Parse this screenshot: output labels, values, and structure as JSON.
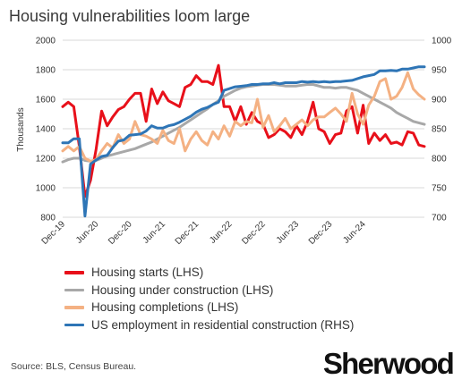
{
  "title": "Housing vulnerabilities loom large",
  "source": "Source: BLS, Census Bureau.",
  "logo": "Sherwood",
  "chart_data": {
    "type": "line",
    "title": "Housing vulnerabilities loom large",
    "ylabel": "Thousands",
    "ylabel_right": "",
    "ylim": [
      800,
      2000
    ],
    "ylim_right": [
      700,
      1000
    ],
    "yticks": [
      "800",
      "1000",
      "1200",
      "1400",
      "1600",
      "1800",
      "2000"
    ],
    "yticks_right": [
      "700",
      "750",
      "800",
      "850",
      "900",
      "950",
      "1000"
    ],
    "x_start": "2019-12",
    "x_end": "2025-01",
    "xticks": [
      "Dec-19",
      "Jun-20",
      "Dec-20",
      "Jun-21",
      "Dec-21",
      "Jun-22",
      "Dec-22",
      "Jun-23",
      "Dec-23",
      "Jun-24"
    ],
    "grid": true,
    "legend_position": "bottom",
    "series": [
      {
        "name": "Housing starts (LHS)",
        "axis": "left",
        "color": "#e8101a",
        "values": [
          1550,
          1580,
          1550,
          1280,
          940,
          1050,
          1260,
          1520,
          1420,
          1480,
          1530,
          1550,
          1600,
          1640,
          1640,
          1450,
          1670,
          1570,
          1650,
          1590,
          1570,
          1550,
          1680,
          1700,
          1760,
          1720,
          1720,
          1700,
          1830,
          1550,
          1550,
          1450,
          1550,
          1430,
          1510,
          1450,
          1430,
          1340,
          1360,
          1400,
          1380,
          1340,
          1420,
          1360,
          1450,
          1580,
          1400,
          1380,
          1300,
          1360,
          1370,
          1520,
          1550,
          1370,
          1560,
          1300,
          1370,
          1320,
          1360,
          1300,
          1310,
          1290,
          1380,
          1370,
          1290,
          1280
        ]
      },
      {
        "name": "Housing under construction (LHS)",
        "axis": "left",
        "color": "#a8a8a8",
        "values": [
          1175,
          1190,
          1200,
          1200,
          1185,
          1180,
          1185,
          1200,
          1215,
          1225,
          1235,
          1245,
          1255,
          1265,
          1280,
          1295,
          1310,
          1330,
          1350,
          1370,
          1390,
          1410,
          1435,
          1460,
          1485,
          1510,
          1535,
          1565,
          1590,
          1620,
          1640,
          1660,
          1675,
          1685,
          1690,
          1695,
          1700,
          1700,
          1700,
          1695,
          1690,
          1690,
          1690,
          1695,
          1700,
          1700,
          1690,
          1680,
          1680,
          1675,
          1680,
          1680,
          1670,
          1660,
          1640,
          1620,
          1600,
          1580,
          1560,
          1540,
          1510,
          1490,
          1470,
          1450,
          1440,
          1430
        ]
      },
      {
        "name": "Housing completions (LHS)",
        "axis": "left",
        "color": "#f4b183",
        "values": [
          1250,
          1280,
          1250,
          1280,
          1200,
          1180,
          1190,
          1250,
          1300,
          1270,
          1360,
          1300,
          1330,
          1450,
          1360,
          1350,
          1330,
          1300,
          1390,
          1320,
          1300,
          1400,
          1250,
          1330,
          1380,
          1320,
          1290,
          1380,
          1330,
          1420,
          1350,
          1450,
          1420,
          1450,
          1440,
          1600,
          1410,
          1490,
          1380,
          1420,
          1470,
          1400,
          1430,
          1460,
          1420,
          1460,
          1480,
          1480,
          1510,
          1540,
          1500,
          1450,
          1640,
          1500,
          1430,
          1560,
          1620,
          1720,
          1740,
          1600,
          1620,
          1680,
          1780,
          1670,
          1630,
          1600
        ]
      },
      {
        "name": "US employment in residential construction (RHS)",
        "axis": "right",
        "color": "#2e75b6",
        "values": [
          826,
          826,
          833,
          833,
          702,
          790,
          797,
          803,
          805,
          818,
          829,
          831,
          839,
          840,
          841,
          846,
          855,
          851,
          851,
          855,
          857,
          861,
          866,
          871,
          878,
          883,
          886,
          891,
          895,
          915,
          918,
          921,
          922,
          923,
          925,
          925,
          926,
          926,
          928,
          926,
          928,
          928,
          928,
          930,
          929,
          930,
          929,
          930,
          929,
          930,
          930,
          931,
          932,
          935,
          938,
          940,
          942,
          948,
          948,
          949,
          948,
          951,
          951,
          953,
          955,
          955
        ]
      }
    ]
  }
}
